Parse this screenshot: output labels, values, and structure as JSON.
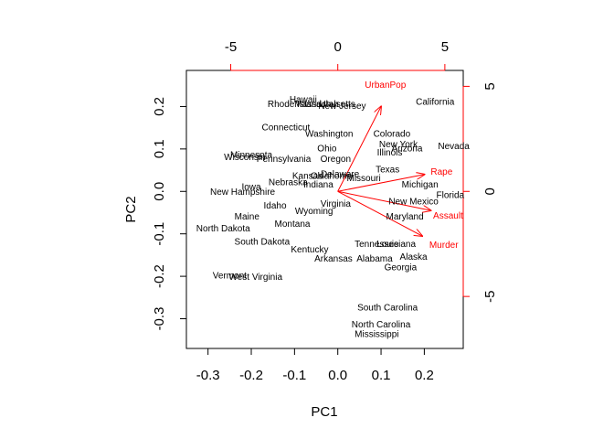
{
  "chart_data": {
    "type": "biplot",
    "xlabel": "PC1",
    "ylabel": "PC2",
    "xlim": [
      -0.35,
      0.29
    ],
    "ylim": [
      -0.37,
      0.285
    ],
    "x_ticks": [
      -0.3,
      -0.2,
      -0.1,
      0.0,
      0.1,
      0.2
    ],
    "x_tick_labels": [
      "-0.3",
      "-0.2",
      "-0.1",
      "0.0",
      "0.1",
      "0.2"
    ],
    "y_ticks": [
      -0.3,
      -0.2,
      -0.1,
      0.0,
      0.1,
      0.2
    ],
    "y_tick_labels": [
      "-0.3",
      "-0.2",
      "-0.1",
      "0.0",
      "0.1",
      "0.2"
    ],
    "secondary_axis_ticks": [
      -5,
      0,
      5
    ],
    "secondary_axis_tick_labels": [
      "-5",
      "0",
      "5"
    ],
    "secondary_axis_scale": 0.0495,
    "arrow_color": "#ff0000",
    "point_color": "#000000",
    "observations": [
      {
        "label": "Hawaii",
        "x": -0.08,
        "y": 0.215
      },
      {
        "label": "Rhode Island",
        "x": -0.1,
        "y": 0.205
      },
      {
        "label": "Massachusetts",
        "x": -0.03,
        "y": 0.205
      },
      {
        "label": "Utah",
        "x": -0.02,
        "y": 0.205
      },
      {
        "label": "New Jersey",
        "x": 0.01,
        "y": 0.2
      },
      {
        "label": "California",
        "x": 0.225,
        "y": 0.21
      },
      {
        "label": "Connecticut",
        "x": -0.12,
        "y": 0.15
      },
      {
        "label": "Washington",
        "x": -0.02,
        "y": 0.135
      },
      {
        "label": "Colorado",
        "x": 0.125,
        "y": 0.135
      },
      {
        "label": "New York",
        "x": 0.14,
        "y": 0.11
      },
      {
        "label": "Arizona",
        "x": 0.16,
        "y": 0.1
      },
      {
        "label": "Illinois",
        "x": 0.12,
        "y": 0.09
      },
      {
        "label": "Nevada",
        "x": 0.268,
        "y": 0.105
      },
      {
        "label": "Ohio",
        "x": -0.025,
        "y": 0.1
      },
      {
        "label": "Oregon",
        "x": -0.005,
        "y": 0.075
      },
      {
        "label": "Minnesota",
        "x": -0.2,
        "y": 0.085
      },
      {
        "label": "Wisconsin",
        "x": -0.215,
        "y": 0.08
      },
      {
        "label": "Pennsylvania",
        "x": -0.125,
        "y": 0.075
      },
      {
        "label": "Texas",
        "x": 0.115,
        "y": 0.05
      },
      {
        "label": "Delaware",
        "x": 0.005,
        "y": 0.04
      },
      {
        "label": "Oklahoma",
        "x": -0.015,
        "y": 0.035
      },
      {
        "label": "Kansas",
        "x": -0.07,
        "y": 0.035
      },
      {
        "label": "Missouri",
        "x": 0.06,
        "y": 0.03
      },
      {
        "label": "Nebraska",
        "x": -0.115,
        "y": 0.02
      },
      {
        "label": "Indiana",
        "x": -0.045,
        "y": 0.015
      },
      {
        "label": "Michigan",
        "x": 0.19,
        "y": 0.015
      },
      {
        "label": "Iowa",
        "x": -0.2,
        "y": 0.01
      },
      {
        "label": "New Hampshire",
        "x": -0.22,
        "y": -0.002
      },
      {
        "label": "Florida",
        "x": 0.26,
        "y": -0.01
      },
      {
        "label": "New Mexico",
        "x": 0.175,
        "y": -0.025
      },
      {
        "label": "Virginia",
        "x": -0.005,
        "y": -0.03
      },
      {
        "label": "Idaho",
        "x": -0.145,
        "y": -0.035
      },
      {
        "label": "Wyoming",
        "x": -0.055,
        "y": -0.048
      },
      {
        "label": "Maine",
        "x": -0.21,
        "y": -0.06
      },
      {
        "label": "Maryland",
        "x": 0.155,
        "y": -0.06
      },
      {
        "label": "Montana",
        "x": -0.105,
        "y": -0.078
      },
      {
        "label": "North Dakota",
        "x": -0.265,
        "y": -0.088
      },
      {
        "label": "South Dakota",
        "x": -0.175,
        "y": -0.12
      },
      {
        "label": "Tennessee",
        "x": 0.09,
        "y": -0.125
      },
      {
        "label": "Louisiana",
        "x": 0.135,
        "y": -0.125
      },
      {
        "label": "Kentucky",
        "x": -0.065,
        "y": -0.138
      },
      {
        "label": "Alaska",
        "x": 0.175,
        "y": -0.155
      },
      {
        "label": "Arkansas",
        "x": -0.01,
        "y": -0.16
      },
      {
        "label": "Alabama",
        "x": 0.085,
        "y": -0.16
      },
      {
        "label": "Georgia",
        "x": 0.145,
        "y": -0.18
      },
      {
        "label": "Vermont",
        "x": -0.25,
        "y": -0.2
      },
      {
        "label": "West Virginia",
        "x": -0.19,
        "y": -0.203
      },
      {
        "label": "South Carolina",
        "x": 0.115,
        "y": -0.275
      },
      {
        "label": "North Carolina",
        "x": 0.1,
        "y": -0.315
      },
      {
        "label": "Mississippi",
        "x": 0.09,
        "y": -0.337
      }
    ],
    "loadings": [
      {
        "label": "UrbanPop",
        "x": 0.1,
        "y": 0.2,
        "label_x": 0.11,
        "label_y": 0.25
      },
      {
        "label": "Rape",
        "x": 0.2,
        "y": 0.04,
        "label_x": 0.24,
        "label_y": 0.045
      },
      {
        "label": "Assault",
        "x": 0.215,
        "y": -0.045,
        "label_x": 0.255,
        "label_y": -0.058
      },
      {
        "label": "Murder",
        "x": 0.195,
        "y": -0.105,
        "label_x": 0.245,
        "label_y": -0.127
      }
    ]
  }
}
